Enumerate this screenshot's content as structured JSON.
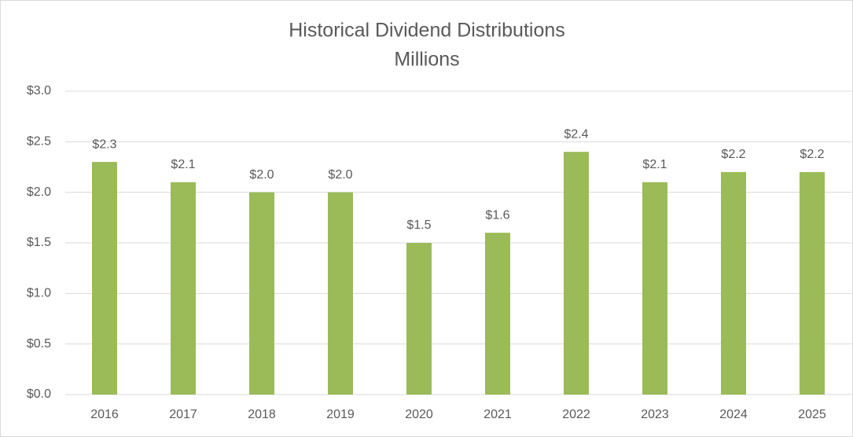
{
  "chart_data": {
    "type": "bar",
    "title": "Historical Dividend Distributions",
    "subtitle": "Millions",
    "categories": [
      "2016",
      "2017",
      "2018",
      "2019",
      "2020",
      "2021",
      "2022",
      "2023",
      "2024",
      "2025"
    ],
    "values": [
      2.3,
      2.1,
      2.0,
      2.0,
      1.5,
      1.6,
      2.4,
      2.1,
      2.2,
      2.2
    ],
    "value_labels": [
      "$2.3",
      "$2.1",
      "$2.0",
      "$2.0",
      "$1.5",
      "$1.6",
      "$2.4",
      "$2.1",
      "$2.2",
      "$2.2"
    ],
    "color": "#9bbb59",
    "ylim": [
      0,
      3
    ],
    "yticks": [
      {
        "value": 0,
        "label": "$0.0"
      },
      {
        "value": 0.5,
        "label": "$0.5"
      },
      {
        "value": 1,
        "label": "$1.0"
      },
      {
        "value": 1.5,
        "label": "$1.5"
      },
      {
        "value": 2,
        "label": "$2.0"
      },
      {
        "value": 2.5,
        "label": "$2.5"
      },
      {
        "value": 3,
        "label": "$3.0"
      }
    ],
    "grid": true
  }
}
